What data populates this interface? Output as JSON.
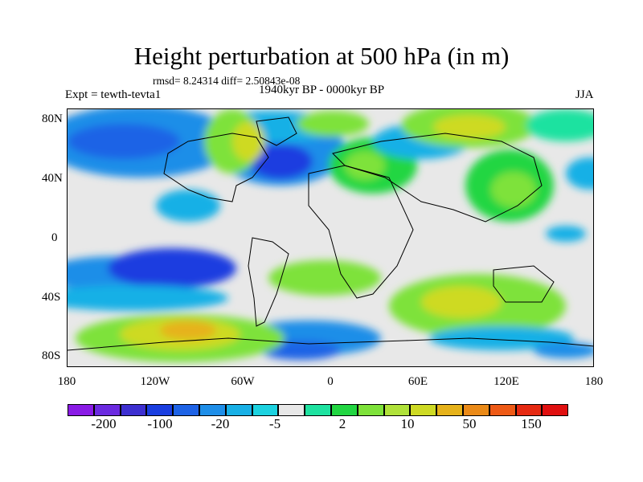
{
  "header": {
    "title": "Height perturbation at 500 hPa (in m)",
    "stats": "rmsd= 8.24314 diff= 2.50843e-08",
    "experiment": "Expt = tewth-tevta1",
    "period": "1940kyr BP - 0000kyr BP",
    "season": "JJA"
  },
  "map": {
    "lat_ticks": [
      "80N",
      "40N",
      "0",
      "40S",
      "80S"
    ],
    "lon_ticks": [
      "180",
      "120W",
      "60W",
      "0",
      "60E",
      "120E",
      "180"
    ],
    "background_color": "#e8e8e8",
    "coastline_color": "#000000"
  },
  "colorbar": {
    "colors": [
      "#8a1be6",
      "#6b2ae0",
      "#3d2fd0",
      "#1a3ee0",
      "#1e63e6",
      "#1e8ee8",
      "#18b0e6",
      "#1cd2e0",
      "#e8e8e8",
      "#1ee2a0",
      "#22d642",
      "#7ee23a",
      "#b0e23a",
      "#ceda24",
      "#e6b21a",
      "#ea8a18",
      "#ee5a16",
      "#e62a12",
      "#e01010"
    ],
    "labels": [
      "-200",
      "-100",
      "-20",
      "-5",
      "2",
      "10",
      "50",
      "150"
    ]
  }
}
